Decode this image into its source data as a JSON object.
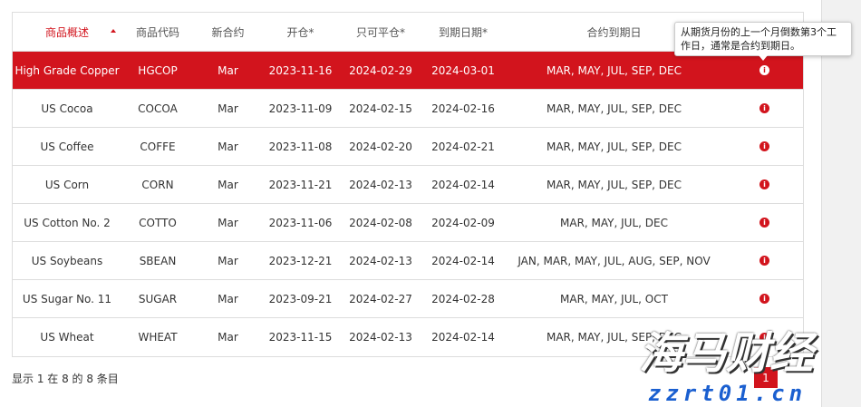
{
  "table": {
    "columns": [
      "商品概述",
      "商品代码",
      "新合约",
      "开仓*",
      "只可平仓*",
      "到期日期*",
      "合约到期日"
    ],
    "rows": [
      [
        "High Grade Copper",
        "HGCOP",
        "Mar",
        "2023-11-16",
        "2024-02-29",
        "2024-03-01",
        "MAR, MAY, JUL, SEP, DEC"
      ],
      [
        "US Cocoa",
        "COCOA",
        "Mar",
        "2023-11-09",
        "2024-02-15",
        "2024-02-16",
        "MAR, MAY, JUL, SEP, DEC"
      ],
      [
        "US Coffee",
        "COFFE",
        "Mar",
        "2023-11-08",
        "2024-02-20",
        "2024-02-21",
        "MAR, MAY, JUL, SEP, DEC"
      ],
      [
        "US Corn",
        "CORN",
        "Mar",
        "2023-11-21",
        "2024-02-13",
        "2024-02-14",
        "MAR, MAY, JUL, SEP, DEC"
      ],
      [
        "US Cotton No. 2",
        "COTTO",
        "Mar",
        "2023-11-06",
        "2024-02-08",
        "2024-02-09",
        "MAR, MAY, JUL, DEC"
      ],
      [
        "US Soybeans",
        "SBEAN",
        "Mar",
        "2023-12-21",
        "2024-02-13",
        "2024-02-14",
        "JAN, MAR, MAY, JUL, AUG, SEP, NOV"
      ],
      [
        "US Sugar No. 11",
        "SUGAR",
        "Mar",
        "2023-09-21",
        "2024-02-27",
        "2024-02-28",
        "MAR, MAY, JUL, OCT"
      ],
      [
        "US Wheat",
        "WHEAT",
        "Mar",
        "2023-11-15",
        "2024-02-13",
        "2024-02-14",
        "MAR, MAY, JUL, SEP, DEC"
      ]
    ]
  },
  "tooltip": "从期货月份的上一个月倒数第3个工作日，通常是合约到期日。",
  "footer": "显示 1 在 8 的 8 条目",
  "pagination": {
    "current": "1"
  },
  "watermark": {
    "name": "海马财经",
    "site": "zzrt01.cn"
  }
}
